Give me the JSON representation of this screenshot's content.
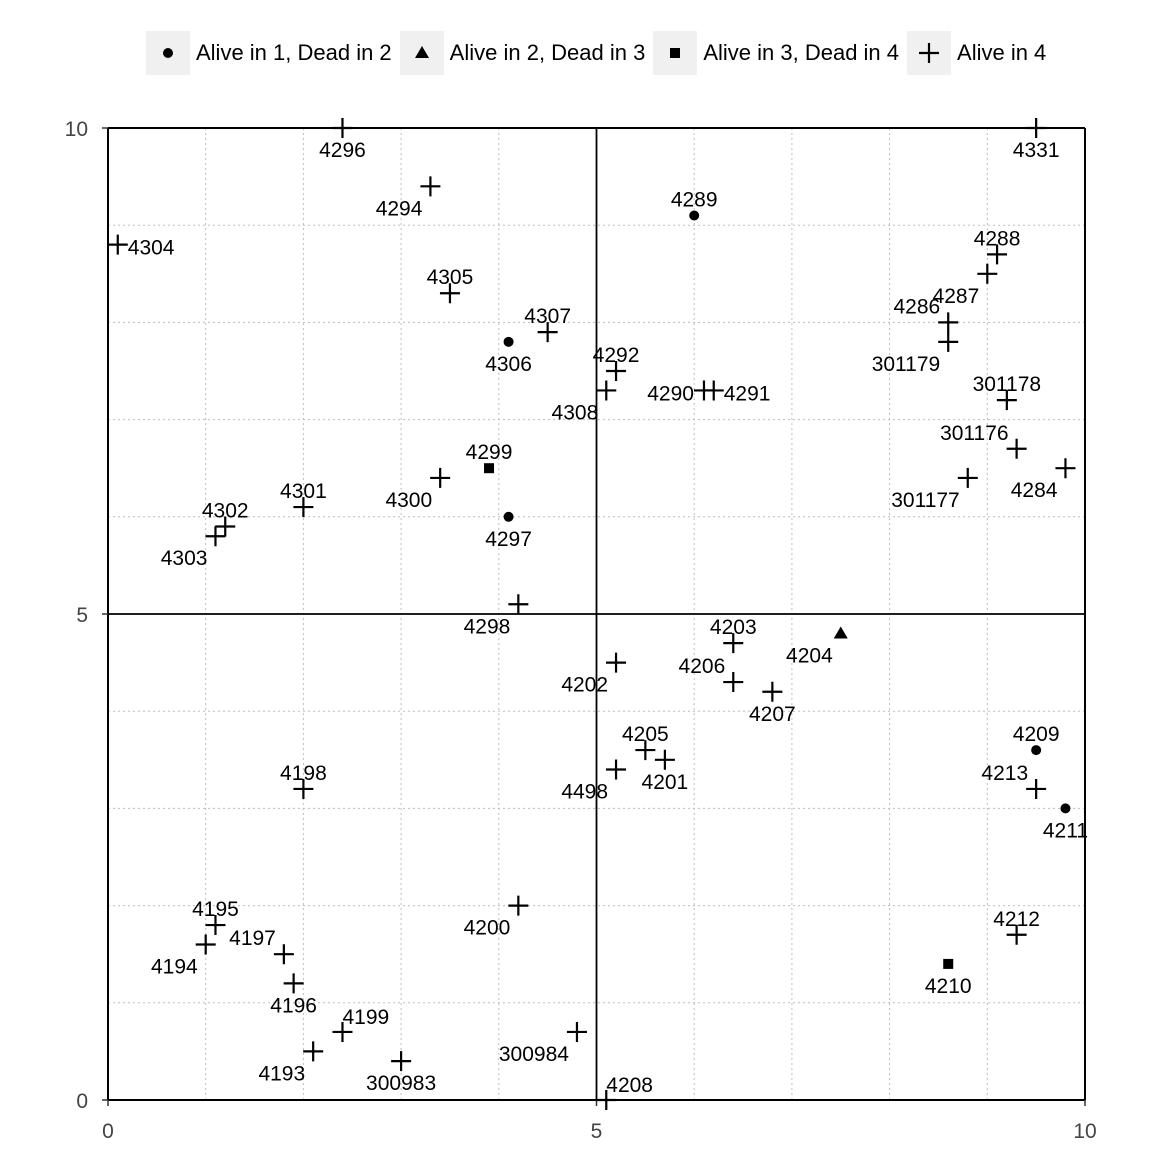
{
  "chart_data": {
    "type": "scatter",
    "title": "",
    "xlabel": "",
    "ylabel": "",
    "xlim": [
      0,
      10
    ],
    "ylim": [
      0,
      10
    ],
    "x_ticks": [
      "0",
      "5",
      "10"
    ],
    "y_ticks": [
      "0",
      "5",
      "10"
    ],
    "grid": true,
    "quadrant_lines": [
      5,
      5
    ],
    "legend_position": "top",
    "legend": [
      {
        "label": "Alive in 1, Dead in 2",
        "marker": "circle"
      },
      {
        "label": "Alive in 2, Dead in 3",
        "marker": "triangle"
      },
      {
        "label": "Alive in 3, Dead in 4",
        "marker": "square"
      },
      {
        "label": "Alive in 4",
        "marker": "plus"
      }
    ],
    "series": [
      {
        "name": "Alive in 1, Dead in 2",
        "marker": "circle",
        "points": [
          {
            "id": "4289",
            "x": 6.0,
            "y": 9.1,
            "lpos": "above"
          },
          {
            "id": "4306",
            "x": 4.1,
            "y": 7.8,
            "lpos": "below"
          },
          {
            "id": "4297",
            "x": 4.1,
            "y": 6.0,
            "lpos": "below"
          },
          {
            "id": "4209",
            "x": 9.5,
            "y": 3.6,
            "lpos": "above"
          },
          {
            "id": "4211",
            "x": 9.8,
            "y": 3.0,
            "lpos": "below"
          }
        ]
      },
      {
        "name": "Alive in 2, Dead in 3",
        "marker": "triangle",
        "points": [
          {
            "id": "4204",
            "x": 7.5,
            "y": 4.8,
            "lpos": "below-left"
          }
        ]
      },
      {
        "name": "Alive in 3, Dead in 4",
        "marker": "square",
        "points": [
          {
            "id": "4299",
            "x": 3.9,
            "y": 6.5,
            "lpos": "above"
          },
          {
            "id": "4210",
            "x": 8.6,
            "y": 1.4,
            "lpos": "below"
          }
        ]
      },
      {
        "name": "Alive in 4",
        "marker": "plus",
        "points": [
          {
            "id": "4296",
            "x": 2.4,
            "y": 10.0,
            "lpos": "below"
          },
          {
            "id": "4331",
            "x": 9.5,
            "y": 10.0,
            "lpos": "below"
          },
          {
            "id": "4294",
            "x": 3.3,
            "y": 9.4,
            "lpos": "below-left"
          },
          {
            "id": "4304",
            "x": 0.1,
            "y": 8.8,
            "lpos": "right"
          },
          {
            "id": "4305",
            "x": 3.5,
            "y": 8.3,
            "lpos": "above"
          },
          {
            "id": "4288",
            "x": 9.1,
            "y": 8.7,
            "lpos": "above"
          },
          {
            "id": "4287",
            "x": 9.0,
            "y": 8.5,
            "lpos": "below-left"
          },
          {
            "id": "4286",
            "x": 8.6,
            "y": 8.0,
            "lpos": "above-left"
          },
          {
            "id": "301179",
            "x": 8.6,
            "y": 7.8,
            "lpos": "below-left"
          },
          {
            "id": "4307",
            "x": 4.5,
            "y": 7.9,
            "lpos": "above"
          },
          {
            "id": "4292",
            "x": 5.2,
            "y": 7.5,
            "lpos": "above"
          },
          {
            "id": "4308",
            "x": 5.1,
            "y": 7.3,
            "lpos": "below-left"
          },
          {
            "id": "4290",
            "x": 6.1,
            "y": 7.3,
            "lpos": "left"
          },
          {
            "id": "4291",
            "x": 6.2,
            "y": 7.3,
            "lpos": "right"
          },
          {
            "id": "301178",
            "x": 9.2,
            "y": 7.2,
            "lpos": "above"
          },
          {
            "id": "301176",
            "x": 9.3,
            "y": 6.7,
            "lpos": "above-left"
          },
          {
            "id": "301177",
            "x": 8.8,
            "y": 6.4,
            "lpos": "below-left"
          },
          {
            "id": "4284",
            "x": 9.8,
            "y": 6.5,
            "lpos": "below-left"
          },
          {
            "id": "4300",
            "x": 3.4,
            "y": 6.4,
            "lpos": "below-left"
          },
          {
            "id": "4301",
            "x": 2.0,
            "y": 6.1,
            "lpos": "above"
          },
          {
            "id": "4302",
            "x": 1.2,
            "y": 5.9,
            "lpos": "above"
          },
          {
            "id": "4303",
            "x": 1.1,
            "y": 5.8,
            "lpos": "below-left"
          },
          {
            "id": "4298",
            "x": 4.2,
            "y": 5.1,
            "lpos": "below-left"
          },
          {
            "id": "4203",
            "x": 6.4,
            "y": 4.7,
            "lpos": "above"
          },
          {
            "id": "4202",
            "x": 5.2,
            "y": 4.5,
            "lpos": "below-left"
          },
          {
            "id": "4206",
            "x": 6.4,
            "y": 4.3,
            "lpos": "above-left"
          },
          {
            "id": "4207",
            "x": 6.8,
            "y": 4.2,
            "lpos": "below"
          },
          {
            "id": "4205",
            "x": 5.5,
            "y": 3.6,
            "lpos": "above"
          },
          {
            "id": "4201",
            "x": 5.7,
            "y": 3.5,
            "lpos": "below"
          },
          {
            "id": "4498",
            "x": 5.2,
            "y": 3.4,
            "lpos": "below-left"
          },
          {
            "id": "4198",
            "x": 2.0,
            "y": 3.2,
            "lpos": "above"
          },
          {
            "id": "4213",
            "x": 9.5,
            "y": 3.2,
            "lpos": "above-left"
          },
          {
            "id": "4200",
            "x": 4.2,
            "y": 2.0,
            "lpos": "below-left"
          },
          {
            "id": "4212",
            "x": 9.3,
            "y": 1.7,
            "lpos": "above"
          },
          {
            "id": "4195",
            "x": 1.1,
            "y": 1.8,
            "lpos": "above"
          },
          {
            "id": "4194",
            "x": 1.0,
            "y": 1.6,
            "lpos": "below-left"
          },
          {
            "id": "4197",
            "x": 1.8,
            "y": 1.5,
            "lpos": "above-left"
          },
          {
            "id": "4196",
            "x": 1.9,
            "y": 1.2,
            "lpos": "below"
          },
          {
            "id": "4199",
            "x": 2.4,
            "y": 0.7,
            "lpos": "above-right"
          },
          {
            "id": "4193",
            "x": 2.1,
            "y": 0.5,
            "lpos": "below-left"
          },
          {
            "id": "300984",
            "x": 4.8,
            "y": 0.7,
            "lpos": "below-left"
          },
          {
            "id": "300983",
            "x": 3.0,
            "y": 0.4,
            "lpos": "below"
          },
          {
            "id": "4208",
            "x": 5.1,
            "y": 0.0,
            "lpos": "above-right"
          }
        ]
      }
    ]
  }
}
